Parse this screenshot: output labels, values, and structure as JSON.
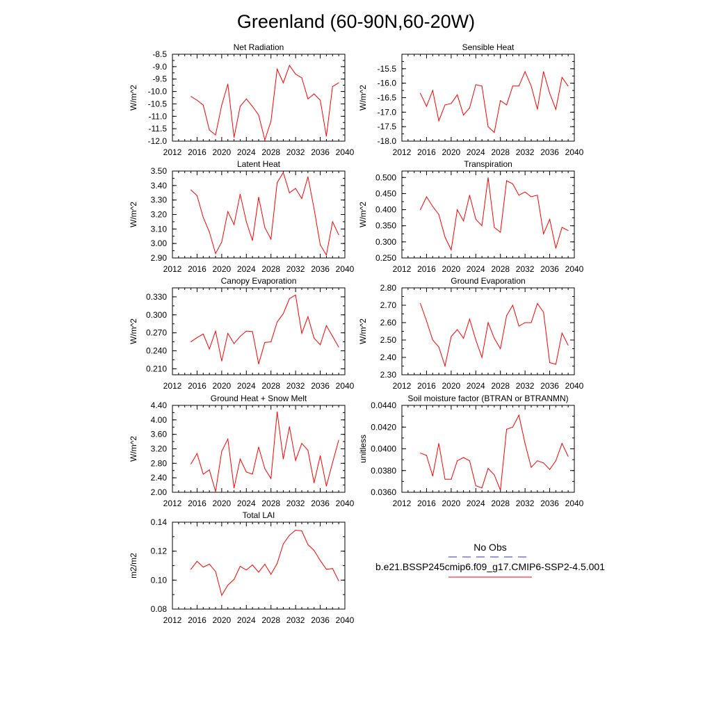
{
  "figure": {
    "title": "Greenland (60-90N,60-20W)",
    "legend": {
      "entries": [
        {
          "label": "No Obs",
          "color": "#3333aa",
          "dash": "dashed"
        },
        {
          "label": "b.e21.BSSP245cmip6.f09_g17.CMIP6-SSP2-4.5.001",
          "color": "#ff0000",
          "dash": "solid"
        }
      ]
    },
    "line_color": "#ff0000"
  },
  "chart_data": [
    {
      "type": "line",
      "title": "Net Radiation",
      "xlabel": "",
      "ylabel": "W/m^2",
      "xlim": [
        2012,
        2040
      ],
      "ylim": [
        -12.0,
        -8.5
      ],
      "xticks": [
        "2012",
        "2016",
        "2020",
        "2024",
        "2028",
        "2032",
        "2036",
        "2040"
      ],
      "yticks": [
        "-12.0",
        "-11.5",
        "-11.0",
        "-10.5",
        "-10.0",
        "-9.5",
        "-9.0",
        "-8.5"
      ],
      "x": [
        2015,
        2016,
        2017,
        2018,
        2019,
        2020,
        2021,
        2022,
        2023,
        2024,
        2025,
        2026,
        2027,
        2028,
        2029,
        2030,
        2031,
        2032,
        2033,
        2034,
        2035,
        2036,
        2037,
        2038,
        2039
      ],
      "y": [
        -10.2,
        -10.35,
        -10.55,
        -11.55,
        -11.75,
        -10.55,
        -9.7,
        -11.85,
        -10.6,
        -10.3,
        -10.6,
        -10.95,
        -11.95,
        -11.2,
        -9.1,
        -9.65,
        -8.95,
        -9.3,
        -9.45,
        -10.3,
        -10.1,
        -10.35,
        -11.8,
        -9.8,
        -9.65
      ]
    },
    {
      "type": "line",
      "title": "Sensible Heat",
      "xlabel": "",
      "ylabel": "W/m^2",
      "xlim": [
        2012,
        2040
      ],
      "ylim": [
        -18.0,
        -15.0
      ],
      "xticks": [
        "2012",
        "2016",
        "2020",
        "2024",
        "2028",
        "2032",
        "2036",
        "2040"
      ],
      "yticks": [
        "-18.0",
        "-17.5",
        "-17.0",
        "-16.5",
        "-16.0",
        "-15.5"
      ],
      "x": [
        2015,
        2016,
        2017,
        2018,
        2019,
        2020,
        2021,
        2022,
        2023,
        2024,
        2025,
        2026,
        2027,
        2028,
        2029,
        2030,
        2031,
        2032,
        2033,
        2034,
        2035,
        2036,
        2037,
        2038,
        2039
      ],
      "y": [
        -16.35,
        -16.8,
        -16.25,
        -17.3,
        -16.75,
        -16.7,
        -16.4,
        -17.1,
        -16.85,
        -16.05,
        -16.1,
        -17.5,
        -17.7,
        -16.6,
        -16.75,
        -16.1,
        -16.1,
        -15.6,
        -16.1,
        -16.9,
        -15.6,
        -16.35,
        -16.9,
        -15.8,
        -16.1
      ]
    },
    {
      "type": "line",
      "title": "Latent Heat",
      "xlabel": "",
      "ylabel": "W/m^2",
      "xlim": [
        2012,
        2040
      ],
      "ylim": [
        2.9,
        3.5
      ],
      "xticks": [
        "2012",
        "2016",
        "2020",
        "2024",
        "2028",
        "2032",
        "2036",
        "2040"
      ],
      "yticks": [
        "2.90",
        "3.00",
        "3.10",
        "3.20",
        "3.30",
        "3.40",
        "3.50"
      ],
      "x": [
        2015,
        2016,
        2017,
        2018,
        2019,
        2020,
        2021,
        2022,
        2023,
        2024,
        2025,
        2026,
        2027,
        2028,
        2029,
        2030,
        2031,
        2032,
        2033,
        2034,
        2035,
        2036,
        2037,
        2038,
        2039
      ],
      "y": [
        3.37,
        3.33,
        3.18,
        3.08,
        2.93,
        3.01,
        3.22,
        3.13,
        3.34,
        3.15,
        3.02,
        3.32,
        3.11,
        3.03,
        3.42,
        3.49,
        3.35,
        3.38,
        3.31,
        3.46,
        3.24,
        2.99,
        2.92,
        3.15,
        3.06
      ]
    },
    {
      "type": "line",
      "title": "Transpiration",
      "xlabel": "",
      "ylabel": "W/m^2",
      "xlim": [
        2012,
        2040
      ],
      "ylim": [
        0.25,
        0.52
      ],
      "xticks": [
        "2012",
        "2016",
        "2020",
        "2024",
        "2028",
        "2032",
        "2036",
        "2040"
      ],
      "yticks": [
        "0.250",
        "0.300",
        "0.350",
        "0.400",
        "0.450",
        "0.500"
      ],
      "x": [
        2015,
        2016,
        2017,
        2018,
        2019,
        2020,
        2021,
        2022,
        2023,
        2024,
        2025,
        2026,
        2027,
        2028,
        2029,
        2030,
        2031,
        2032,
        2033,
        2034,
        2035,
        2036,
        2037,
        2038,
        2039
      ],
      "y": [
        0.4,
        0.44,
        0.41,
        0.385,
        0.315,
        0.275,
        0.4,
        0.365,
        0.445,
        0.37,
        0.35,
        0.5,
        0.345,
        0.33,
        0.49,
        0.48,
        0.445,
        0.455,
        0.44,
        0.445,
        0.325,
        0.37,
        0.28,
        0.345,
        0.335
      ]
    },
    {
      "type": "line",
      "title": "Canopy Evaporation",
      "xlabel": "",
      "ylabel": "W/m^2",
      "xlim": [
        2012,
        2040
      ],
      "ylim": [
        0.2,
        0.345
      ],
      "xticks": [
        "2012",
        "2016",
        "2020",
        "2024",
        "2028",
        "2032",
        "2036",
        "2040"
      ],
      "yticks": [
        "0.210",
        "0.240",
        "0.270",
        "0.300",
        "0.330"
      ],
      "x": [
        2015,
        2016,
        2017,
        2018,
        2019,
        2020,
        2021,
        2022,
        2023,
        2024,
        2025,
        2026,
        2027,
        2028,
        2029,
        2030,
        2031,
        2032,
        2033,
        2034,
        2035,
        2036,
        2037,
        2038,
        2039
      ],
      "y": [
        0.255,
        0.262,
        0.268,
        0.243,
        0.273,
        0.223,
        0.269,
        0.252,
        0.264,
        0.273,
        0.272,
        0.218,
        0.254,
        0.255,
        0.288,
        0.302,
        0.327,
        0.333,
        0.269,
        0.297,
        0.261,
        0.25,
        0.282,
        0.264,
        0.246
      ]
    },
    {
      "type": "line",
      "title": "Ground Evaporation",
      "xlabel": "",
      "ylabel": "W/m^2",
      "xlim": [
        2012,
        2040
      ],
      "ylim": [
        2.3,
        2.8
      ],
      "xticks": [
        "2012",
        "2016",
        "2020",
        "2024",
        "2028",
        "2032",
        "2036",
        "2040"
      ],
      "yticks": [
        "2.30",
        "2.40",
        "2.50",
        "2.60",
        "2.70",
        "2.80"
      ],
      "x": [
        2015,
        2016,
        2017,
        2018,
        2019,
        2020,
        2021,
        2022,
        2023,
        2024,
        2025,
        2026,
        2027,
        2028,
        2029,
        2030,
        2031,
        2032,
        2033,
        2034,
        2035,
        2036,
        2037,
        2038,
        2039
      ],
      "y": [
        2.71,
        2.61,
        2.5,
        2.46,
        2.35,
        2.52,
        2.56,
        2.51,
        2.62,
        2.5,
        2.4,
        2.6,
        2.51,
        2.45,
        2.64,
        2.7,
        2.58,
        2.6,
        2.6,
        2.71,
        2.66,
        2.37,
        2.36,
        2.54,
        2.47
      ]
    },
    {
      "type": "line",
      "title": "Ground Heat + Snow Melt",
      "xlabel": "",
      "ylabel": "W/m^2",
      "xlim": [
        2012,
        2040
      ],
      "ylim": [
        2.0,
        4.4
      ],
      "xticks": [
        "2012",
        "2016",
        "2020",
        "2024",
        "2028",
        "2032",
        "2036",
        "2040"
      ],
      "yticks": [
        "2.00",
        "2.40",
        "2.80",
        "3.20",
        "3.60",
        "4.00",
        "4.40"
      ],
      "x": [
        2015,
        2016,
        2017,
        2018,
        2019,
        2020,
        2021,
        2022,
        2023,
        2024,
        2025,
        2026,
        2027,
        2028,
        2029,
        2030,
        2031,
        2032,
        2033,
        2034,
        2035,
        2036,
        2037,
        2038,
        2039
      ],
      "y": [
        2.78,
        3.07,
        2.5,
        2.62,
        2.02,
        3.13,
        3.47,
        2.12,
        2.92,
        2.56,
        2.5,
        3.25,
        2.65,
        2.38,
        4.22,
        2.92,
        3.81,
        2.88,
        3.35,
        3.16,
        2.26,
        3.01,
        2.17,
        2.82,
        3.44
      ]
    },
    {
      "type": "line",
      "title": "Soil moisture factor (BTRAN or BTRANMN)",
      "xlabel": "",
      "ylabel": "unitless",
      "xlim": [
        2012,
        2040
      ],
      "ylim": [
        0.036,
        0.044
      ],
      "xticks": [
        "2012",
        "2016",
        "2020",
        "2024",
        "2028",
        "2032",
        "2036",
        "2040"
      ],
      "yticks": [
        "0.0360",
        "0.0380",
        "0.0400",
        "0.0420",
        "0.0440"
      ],
      "x": [
        2015,
        2016,
        2017,
        2018,
        2019,
        2020,
        2021,
        2022,
        2023,
        2024,
        2025,
        2026,
        2027,
        2028,
        2029,
        2030,
        2031,
        2032,
        2033,
        2034,
        2035,
        2036,
        2037,
        2038,
        2039
      ],
      "y": [
        0.0396,
        0.0394,
        0.0375,
        0.0405,
        0.0372,
        0.0372,
        0.0389,
        0.0392,
        0.0389,
        0.0366,
        0.0364,
        0.0382,
        0.0376,
        0.0362,
        0.0418,
        0.042,
        0.0431,
        0.0405,
        0.0383,
        0.0389,
        0.0387,
        0.0381,
        0.0389,
        0.0405,
        0.0393
      ]
    },
    {
      "type": "line",
      "title": "Total LAI",
      "xlabel": "",
      "ylabel": "m2/m2",
      "xlim": [
        2012,
        2040
      ],
      "ylim": [
        0.08,
        0.14
      ],
      "xticks": [
        "2012",
        "2016",
        "2020",
        "2024",
        "2028",
        "2032",
        "2036",
        "2040"
      ],
      "yticks": [
        "0.08",
        "0.10",
        "0.12",
        "0.14"
      ],
      "x": [
        2015,
        2016,
        2017,
        2018,
        2019,
        2020,
        2021,
        2022,
        2023,
        2024,
        2025,
        2026,
        2027,
        2028,
        2029,
        2030,
        2031,
        2032,
        2033,
        2034,
        2035,
        2036,
        2037,
        2038,
        2039
      ],
      "y": [
        0.1075,
        0.113,
        0.109,
        0.111,
        0.106,
        0.0895,
        0.0965,
        0.1005,
        0.1095,
        0.107,
        0.1105,
        0.1055,
        0.111,
        0.104,
        0.1115,
        0.125,
        0.131,
        0.1345,
        0.134,
        0.1245,
        0.1205,
        0.1135,
        0.1075,
        0.108,
        0.0995
      ]
    }
  ]
}
